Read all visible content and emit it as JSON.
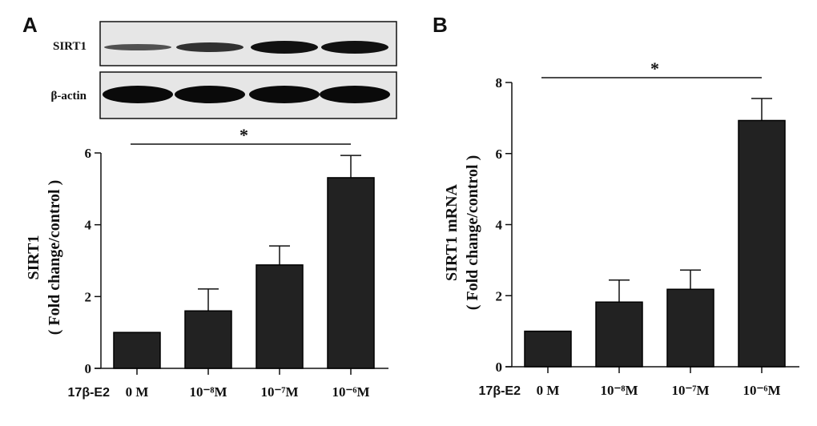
{
  "panels": {
    "a_label": "A",
    "b_label": "B"
  },
  "blot": {
    "rows": [
      "SIRT1",
      "β-actin"
    ]
  },
  "chart_data": [
    {
      "type": "bar",
      "panel": "A",
      "categories": [
        "0 M",
        "10⁻⁸M",
        "10⁻⁷M",
        "10⁻⁶M"
      ],
      "x_prefix_label": "17β-E2",
      "values": [
        1.0,
        1.6,
        2.88,
        5.31
      ],
      "error_upper": [
        0,
        0.61,
        0.53,
        0.62
      ],
      "ylabel": "SIRT1",
      "ylabel2": "( Fold change/control )",
      "ylim": [
        0,
        6
      ],
      "yticks": [
        "0",
        "2",
        "4",
        "6"
      ],
      "significance": {
        "from": "0 M",
        "to": "10⁻⁶M",
        "label": "*"
      },
      "bar_color": "#222222",
      "grid": false
    },
    {
      "type": "bar",
      "panel": "B",
      "categories": [
        "0 M",
        "10⁻⁸M",
        "10⁻⁷M",
        "10⁻⁶M"
      ],
      "x_prefix_label": "17β-E2",
      "values": [
        1.0,
        1.82,
        2.18,
        6.93
      ],
      "error_upper": [
        0,
        0.62,
        0.54,
        0.62
      ],
      "ylabel": "SIRT1 mRNA",
      "ylabel2": "( Fold change/control )",
      "ylim": [
        0,
        8
      ],
      "yticks": [
        "0",
        "2",
        "4",
        "6",
        "8"
      ],
      "significance": {
        "from": "0 M",
        "to": "10⁻⁶M",
        "label": "*"
      },
      "bar_color": "#222222",
      "grid": false
    }
  ]
}
